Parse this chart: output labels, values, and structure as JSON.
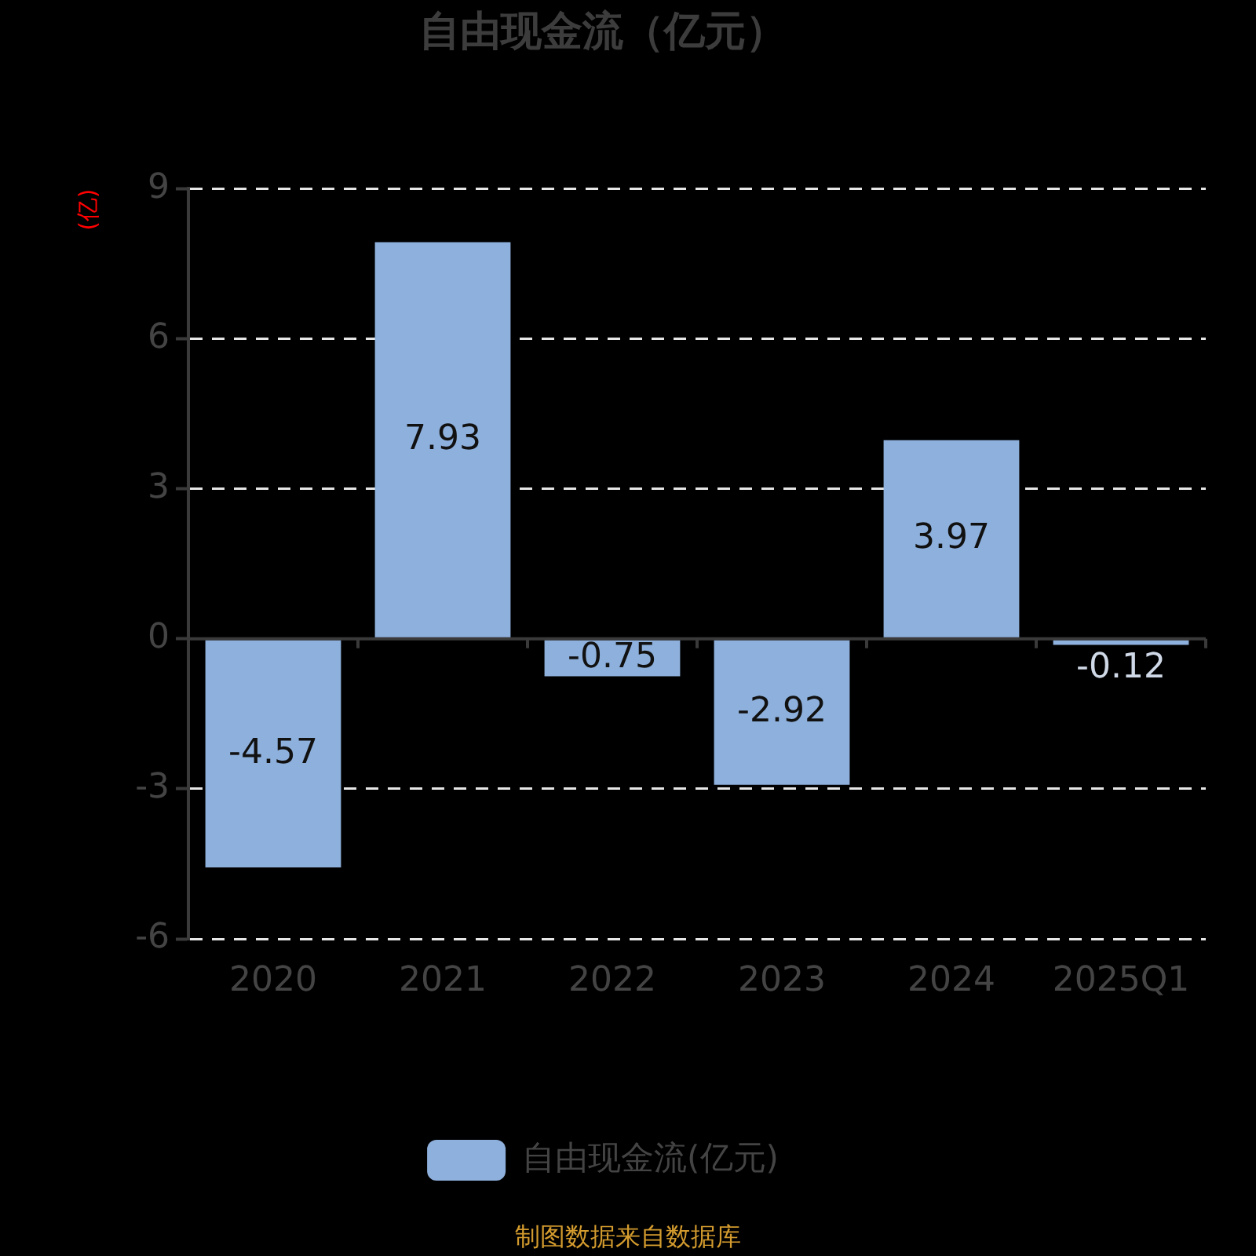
{
  "chart_data": {
    "type": "bar",
    "title": "自由现金流（亿元）",
    "ylabel": "(亿)",
    "categories": [
      "2020",
      "2021",
      "2022",
      "2023",
      "2024",
      "2025Q1"
    ],
    "series": [
      {
        "name": "自由现金流(亿元)",
        "color": "#8eb0dc",
        "values": [
          -4.57,
          7.93,
          -0.75,
          -2.92,
          3.97,
          -0.12
        ]
      }
    ],
    "ylim": [
      -6,
      9
    ],
    "yticks": [
      -6,
      -3,
      0,
      3,
      6,
      9
    ],
    "grid": "y",
    "legend": "bottom",
    "data_labels": true,
    "annotations": [
      "制图数据来自数据库"
    ]
  }
}
